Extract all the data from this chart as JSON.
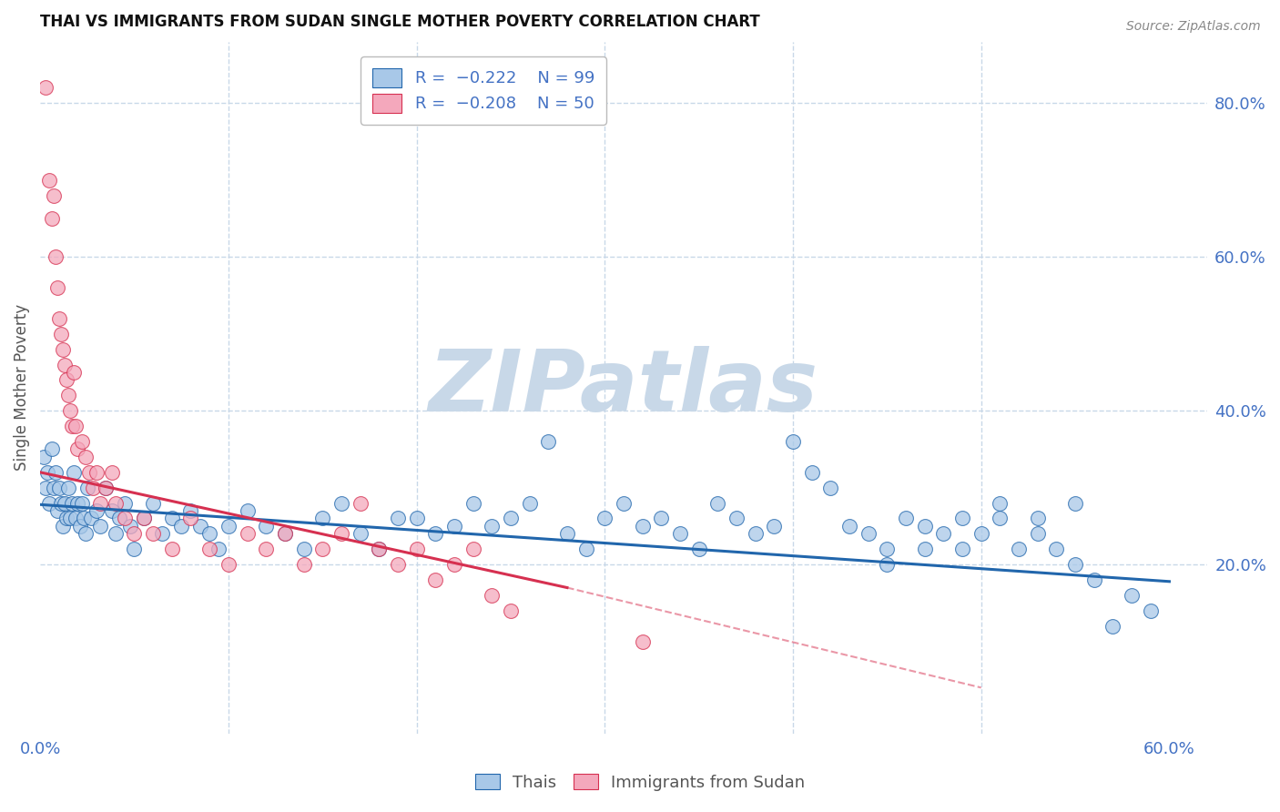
{
  "title": "THAI VS IMMIGRANTS FROM SUDAN SINGLE MOTHER POVERTY CORRELATION CHART",
  "source": "Source: ZipAtlas.com",
  "ylabel": "Single Mother Poverty",
  "xlim": [
    0.0,
    0.62
  ],
  "ylim": [
    -0.02,
    0.88
  ],
  "right_y_ticks": [
    0.2,
    0.4,
    0.6,
    0.8
  ],
  "right_y_tick_labels": [
    "20.0%",
    "40.0%",
    "60.0%",
    "80.0%"
  ],
  "color_thai": "#a8c8e8",
  "color_sudan": "#f4a8bc",
  "color_trendline_thai": "#2166ac",
  "color_trendline_sudan": "#d63050",
  "watermark": "ZIPatlas",
  "watermark_color": "#c8d8e8",
  "background": "#ffffff",
  "grid_color": "#c8d8e8",
  "legend_label_thai": "Thais",
  "legend_label_sudan": "Immigrants from Sudan",
  "thai_x": [
    0.002,
    0.003,
    0.004,
    0.005,
    0.006,
    0.007,
    0.008,
    0.009,
    0.01,
    0.011,
    0.012,
    0.013,
    0.014,
    0.015,
    0.016,
    0.017,
    0.018,
    0.019,
    0.02,
    0.021,
    0.022,
    0.023,
    0.024,
    0.025,
    0.027,
    0.03,
    0.032,
    0.035,
    0.038,
    0.04,
    0.042,
    0.045,
    0.048,
    0.05,
    0.055,
    0.06,
    0.065,
    0.07,
    0.075,
    0.08,
    0.085,
    0.09,
    0.095,
    0.1,
    0.11,
    0.12,
    0.13,
    0.14,
    0.15,
    0.16,
    0.17,
    0.18,
    0.19,
    0.2,
    0.21,
    0.22,
    0.23,
    0.24,
    0.25,
    0.26,
    0.27,
    0.28,
    0.29,
    0.3,
    0.31,
    0.32,
    0.33,
    0.34,
    0.35,
    0.36,
    0.37,
    0.38,
    0.39,
    0.4,
    0.41,
    0.42,
    0.43,
    0.44,
    0.45,
    0.46,
    0.47,
    0.48,
    0.49,
    0.5,
    0.51,
    0.52,
    0.53,
    0.54,
    0.55,
    0.56,
    0.57,
    0.58,
    0.59,
    0.55,
    0.53,
    0.51,
    0.49,
    0.47,
    0.45
  ],
  "thai_y": [
    0.34,
    0.3,
    0.32,
    0.28,
    0.35,
    0.3,
    0.32,
    0.27,
    0.3,
    0.28,
    0.25,
    0.28,
    0.26,
    0.3,
    0.26,
    0.28,
    0.32,
    0.26,
    0.28,
    0.25,
    0.28,
    0.26,
    0.24,
    0.3,
    0.26,
    0.27,
    0.25,
    0.3,
    0.27,
    0.24,
    0.26,
    0.28,
    0.25,
    0.22,
    0.26,
    0.28,
    0.24,
    0.26,
    0.25,
    0.27,
    0.25,
    0.24,
    0.22,
    0.25,
    0.27,
    0.25,
    0.24,
    0.22,
    0.26,
    0.28,
    0.24,
    0.22,
    0.26,
    0.26,
    0.24,
    0.25,
    0.28,
    0.25,
    0.26,
    0.28,
    0.36,
    0.24,
    0.22,
    0.26,
    0.28,
    0.25,
    0.26,
    0.24,
    0.22,
    0.28,
    0.26,
    0.24,
    0.25,
    0.36,
    0.32,
    0.3,
    0.25,
    0.24,
    0.22,
    0.26,
    0.25,
    0.24,
    0.22,
    0.24,
    0.26,
    0.22,
    0.24,
    0.22,
    0.2,
    0.18,
    0.12,
    0.16,
    0.14,
    0.28,
    0.26,
    0.28,
    0.26,
    0.22,
    0.2
  ],
  "sudan_x": [
    0.003,
    0.005,
    0.006,
    0.007,
    0.008,
    0.009,
    0.01,
    0.011,
    0.012,
    0.013,
    0.014,
    0.015,
    0.016,
    0.017,
    0.018,
    0.019,
    0.02,
    0.022,
    0.024,
    0.026,
    0.028,
    0.03,
    0.032,
    0.035,
    0.038,
    0.04,
    0.045,
    0.05,
    0.055,
    0.06,
    0.07,
    0.08,
    0.09,
    0.1,
    0.11,
    0.12,
    0.13,
    0.14,
    0.15,
    0.16,
    0.17,
    0.18,
    0.19,
    0.2,
    0.21,
    0.22,
    0.23,
    0.24,
    0.25,
    0.32
  ],
  "sudan_y": [
    0.82,
    0.7,
    0.65,
    0.68,
    0.6,
    0.56,
    0.52,
    0.5,
    0.48,
    0.46,
    0.44,
    0.42,
    0.4,
    0.38,
    0.45,
    0.38,
    0.35,
    0.36,
    0.34,
    0.32,
    0.3,
    0.32,
    0.28,
    0.3,
    0.32,
    0.28,
    0.26,
    0.24,
    0.26,
    0.24,
    0.22,
    0.26,
    0.22,
    0.2,
    0.24,
    0.22,
    0.24,
    0.2,
    0.22,
    0.24,
    0.28,
    0.22,
    0.2,
    0.22,
    0.18,
    0.2,
    0.22,
    0.16,
    0.14,
    0.1
  ],
  "thai_trendline": [
    0.0,
    0.6,
    0.278,
    0.178
  ],
  "sudan_trendline_solid": [
    0.0,
    0.28,
    0.32,
    0.17
  ],
  "sudan_trendline_dashed": [
    0.28,
    0.5,
    0.17,
    0.04
  ]
}
